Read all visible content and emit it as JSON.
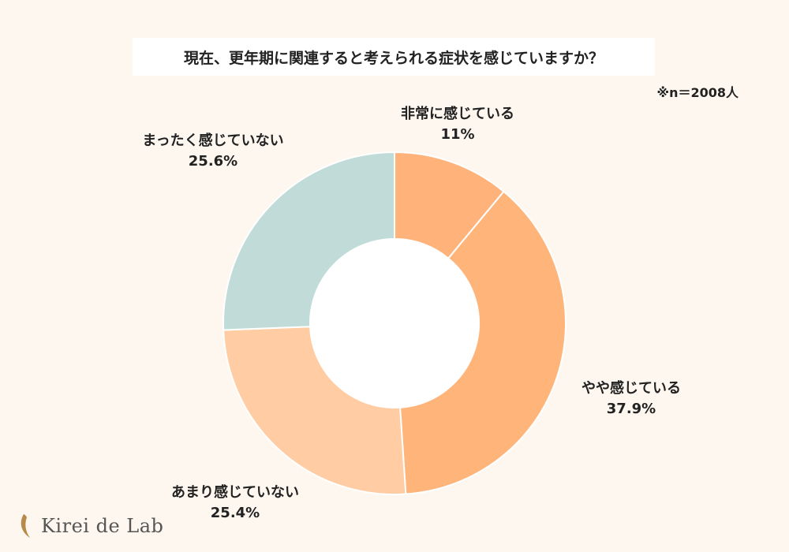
{
  "title": "現在、更年期に関連すると考えられる症状を感じていますか？",
  "sample_note": "※n＝2008人",
  "brand": "Kirei de Lab",
  "chart_data": {
    "type": "pie",
    "donut": true,
    "start_angle_deg": 0,
    "direction": "clockwise",
    "title": "現在、更年期に関連すると考えられる症状を感じていますか？",
    "slices": [
      {
        "label": "非常に感じている",
        "value": 11,
        "value_label": "11%",
        "color": "#ffb37b"
      },
      {
        "label": "やや感じている",
        "value": 37.9,
        "value_label": "37.9%",
        "color": "#ffb47a"
      },
      {
        "label": "あまり感じていない",
        "value": 25.4,
        "value_label": "25.4%",
        "color": "#ffcca3"
      },
      {
        "label": "まったく感じていない",
        "value": 25.6,
        "value_label": "25.6%",
        "color": "#c0dbd8"
      }
    ]
  }
}
